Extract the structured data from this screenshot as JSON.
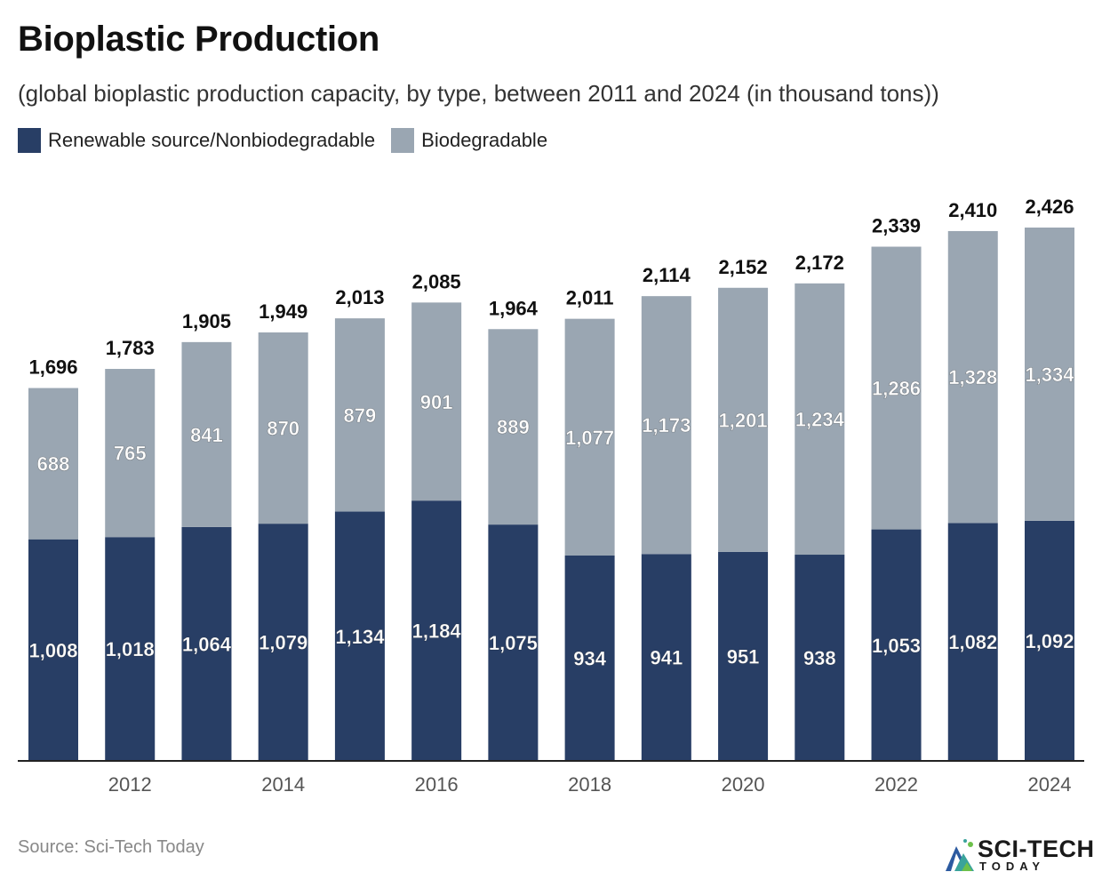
{
  "title": "Bioplastic Production",
  "subtitle": "(global bioplastic production capacity, by type, between 2011 and 2024 (in thousand tons))",
  "source": "Source: Sci-Tech Today",
  "brand": {
    "name": "SCI-TECH",
    "sub": "TODAY"
  },
  "colors": {
    "renewable": "#283e65",
    "biodegradable": "#9aa6b2",
    "axis": "#222222"
  },
  "chart_data": {
    "type": "bar",
    "stacked": true,
    "x": [
      2011,
      2012,
      2013,
      2014,
      2015,
      2016,
      2017,
      2018,
      2019,
      2020,
      2021,
      2022,
      2023,
      2024
    ],
    "x_ticks": [
      "2012",
      "2014",
      "2016",
      "2018",
      "2020",
      "2022",
      "2024"
    ],
    "series": [
      {
        "name": "Renewable source/Nonbiodegradable",
        "values": [
          1008,
          1018,
          1064,
          1079,
          1134,
          1184,
          1075,
          934,
          941,
          951,
          938,
          1053,
          1082,
          1092
        ],
        "labels": [
          "1,008",
          "1,018",
          "1,064",
          "1,079",
          "1,134",
          "1,184",
          "1,075",
          "934",
          "941",
          "951",
          "938",
          "1,053",
          "1,082",
          "1,092"
        ]
      },
      {
        "name": "Biodegradable",
        "values": [
          688,
          765,
          841,
          870,
          879,
          901,
          889,
          1077,
          1173,
          1201,
          1234,
          1286,
          1328,
          1334
        ],
        "labels": [
          "688",
          "765",
          "841",
          "870",
          "879",
          "901",
          "889",
          "1,077",
          "1,173",
          "1,201",
          "1,234",
          "1,286",
          "1,328",
          "1,334"
        ]
      }
    ],
    "totals": [
      "1,696",
      "1,783",
      "1,905",
      "1,949",
      "2,013",
      "2,085",
      "1,964",
      "2,011",
      "2,114",
      "2,152",
      "2,172",
      "2,339",
      "2,410",
      "2,426"
    ],
    "ylim": [
      0,
      2426
    ],
    "legend_position": "top-left",
    "grid": false
  }
}
